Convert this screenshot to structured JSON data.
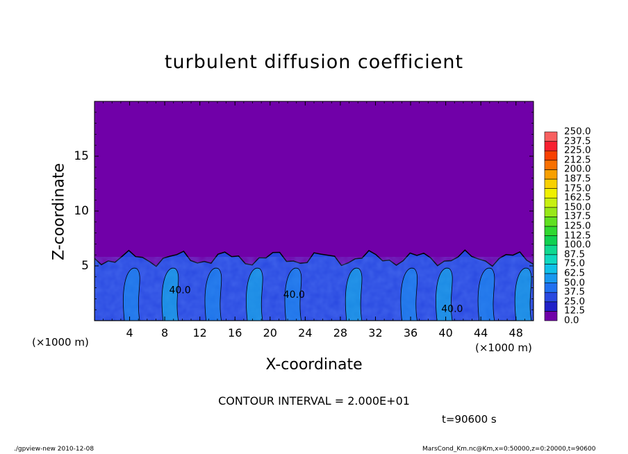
{
  "chart_data": {
    "type": "heatmap",
    "title": "turbulent diffusion coefficient",
    "xlabel": "X-coordinate",
    "ylabel": "Z-coordinate",
    "x_unit_left": "(×1000 m)",
    "x_unit_right": "(×1000 m)",
    "xlim": [
      0,
      50
    ],
    "ylim": [
      0,
      20
    ],
    "x_ticks": [
      "4",
      "8",
      "12",
      "16",
      "20",
      "24",
      "28",
      "32",
      "36",
      "40",
      "44",
      "48"
    ],
    "x_tick_values": [
      4,
      8,
      12,
      16,
      20,
      24,
      28,
      32,
      36,
      40,
      44,
      48
    ],
    "y_ticks": [
      "5",
      "10",
      "15"
    ],
    "y_tick_values": [
      5,
      10,
      15
    ],
    "contour_labels": [
      {
        "text": "40.0",
        "x": 8.5,
        "y": 2.5
      },
      {
        "text": "40.0",
        "x": 21.5,
        "y": 2.1
      },
      {
        "text": "40.0",
        "x": 39.5,
        "y": 0.8
      }
    ],
    "colorbar": {
      "levels": [
        "0.0",
        "12.5",
        "25.0",
        "37.5",
        "50.0",
        "62.5",
        "75.0",
        "87.5",
        "100.0",
        "112.5",
        "125.0",
        "137.5",
        "150.0",
        "162.5",
        "175.0",
        "187.5",
        "200.0",
        "212.5",
        "225.0",
        "237.5",
        "250.0"
      ],
      "colors": [
        "#7000a8",
        "#2020c8",
        "#2848e0",
        "#2070f0",
        "#1898f0",
        "#10c0e8",
        "#10d8c0",
        "#10d890",
        "#10d050",
        "#30d830",
        "#60e020",
        "#98e818",
        "#c8f010",
        "#f0f000",
        "#f8d000",
        "#f8a000",
        "#f87000",
        "#f84000",
        "#f82030",
        "#f86060",
        "#f89090"
      ]
    },
    "background_value_color": "#7000a8",
    "turbulent_layer_top": 5.5,
    "contour_interval": "CONTOUR INTERVAL = 2.000E+01",
    "time": "t=90600 s"
  },
  "footer": {
    "left": "./gpview-new  2010-12-08",
    "right": "MarsCond_Km.nc@Km,x=0:50000,z=0:20000,t=90600"
  }
}
